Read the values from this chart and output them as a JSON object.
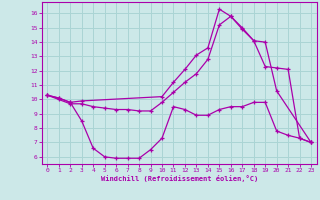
{
  "xlabel": "Windchill (Refroidissement éolien,°C)",
  "background_color": "#cce8e8",
  "grid_color": "#aad4d4",
  "line_color": "#aa00aa",
  "xlim": [
    -0.5,
    23.5
  ],
  "ylim": [
    5.5,
    16.8
  ],
  "xticks": [
    0,
    1,
    2,
    3,
    4,
    5,
    6,
    7,
    8,
    9,
    10,
    11,
    12,
    13,
    14,
    15,
    16,
    17,
    18,
    19,
    20,
    21,
    22,
    23
  ],
  "yticks": [
    6,
    7,
    8,
    9,
    10,
    11,
    12,
    13,
    14,
    15,
    16
  ],
  "line1_x": [
    0,
    1,
    2,
    3,
    10,
    11,
    12,
    13,
    14,
    15,
    16,
    17,
    18,
    19,
    20,
    23
  ],
  "line1_y": [
    10.3,
    10.1,
    9.8,
    9.9,
    10.2,
    11.2,
    12.1,
    13.1,
    13.6,
    16.3,
    15.8,
    15.0,
    14.1,
    14.0,
    10.6,
    7.0
  ],
  "line2_x": [
    0,
    1,
    2,
    3,
    4,
    5,
    6,
    7,
    8,
    9,
    10,
    11,
    12,
    13,
    14,
    15,
    16,
    17,
    18,
    19,
    20,
    21,
    22,
    23
  ],
  "line2_y": [
    10.3,
    10.0,
    9.7,
    9.7,
    9.5,
    9.4,
    9.3,
    9.3,
    9.2,
    9.2,
    9.8,
    10.5,
    11.2,
    11.8,
    12.8,
    15.2,
    15.8,
    14.9,
    14.1,
    12.3,
    12.2,
    12.1,
    7.3,
    7.0
  ],
  "line3_x": [
    0,
    1,
    2,
    3,
    4,
    5,
    6,
    7,
    8,
    9,
    10,
    11,
    12,
    13,
    14,
    15,
    16,
    17,
    18,
    19,
    20,
    21,
    22,
    23
  ],
  "line3_y": [
    10.3,
    10.1,
    9.8,
    8.5,
    6.6,
    6.0,
    5.9,
    5.9,
    5.9,
    6.5,
    7.3,
    9.5,
    9.3,
    8.9,
    8.9,
    9.3,
    9.5,
    9.5,
    9.8,
    9.8,
    7.8,
    7.5,
    7.3,
    7.0
  ]
}
